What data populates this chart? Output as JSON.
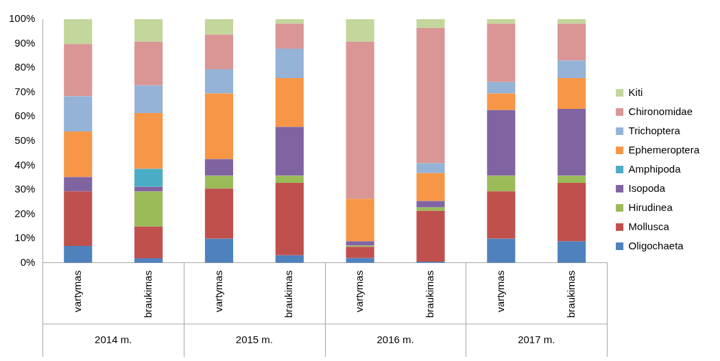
{
  "chart_data": {
    "type": "bar",
    "stacked": true,
    "categories": [
      "vartymas",
      "braukimas",
      "vartymas",
      "braukimas",
      "vartymas",
      "braukimas",
      "vartymas",
      "braukimas"
    ],
    "annotations": [
      "2014 m.",
      "2015 m.",
      "2016 m.",
      "2017 m."
    ],
    "series": [
      {
        "name": "Oligochaeta",
        "color": "#4f81bd",
        "values": [
          7,
          1.9,
          9.9,
          3.1,
          2.0,
          0.5,
          9.9,
          8.9
        ]
      },
      {
        "name": "Mollusca",
        "color": "#c0504d",
        "values": [
          22.4,
          13.0,
          20.6,
          29.7,
          4.6,
          20.9,
          19.5,
          23.9
        ]
      },
      {
        "name": "Hirudinea",
        "color": "#9bbb59",
        "values": [
          0,
          14.4,
          5.3,
          3.0,
          0.5,
          1.4,
          6.4,
          3.0
        ]
      },
      {
        "name": "Isopoda",
        "color": "#8064a2",
        "values": [
          5.8,
          1.9,
          6.8,
          20.0,
          1.8,
          2.6,
          26.9,
          27.4
        ]
      },
      {
        "name": "Amphipoda",
        "color": "#4bacc6",
        "values": [
          0,
          7.4,
          0,
          0,
          0,
          0,
          0,
          0
        ]
      },
      {
        "name": "Ephemeroptera",
        "color": "#f79646",
        "values": [
          18.7,
          22.9,
          26.9,
          20.0,
          17.4,
          11.4,
          6.8,
          12.6
        ]
      },
      {
        "name": "Trichoptera",
        "color": "#95b3d7",
        "values": [
          14.5,
          11.3,
          10.0,
          12.1,
          0,
          4.1,
          4.7,
          7.3
        ]
      },
      {
        "name": "Chironomidae",
        "color": "#d99694",
        "values": [
          21.4,
          18.0,
          14.2,
          10.3,
          64.5,
          55.5,
          24.0,
          15.1
        ]
      },
      {
        "name": "Kiti",
        "color": "#c3d69b",
        "values": [
          10.2,
          9.2,
          6.3,
          1.8,
          9.2,
          3.6,
          1.8,
          1.8
        ]
      }
    ],
    "ylim": [
      0,
      100
    ],
    "yticks": [
      {
        "value": 0,
        "label": "0%"
      },
      {
        "value": 10,
        "label": "10%"
      },
      {
        "value": 20,
        "label": "20%"
      },
      {
        "value": 30,
        "label": "30%"
      },
      {
        "value": 40,
        "label": "40%"
      },
      {
        "value": 50,
        "label": "50%"
      },
      {
        "value": 60,
        "label": "60%"
      },
      {
        "value": 70,
        "label": "70%"
      },
      {
        "value": 80,
        "label": "80%"
      },
      {
        "value": 90,
        "label": "90%"
      },
      {
        "value": 100,
        "label": "100%"
      }
    ],
    "grid": false,
    "legend": "right"
  }
}
